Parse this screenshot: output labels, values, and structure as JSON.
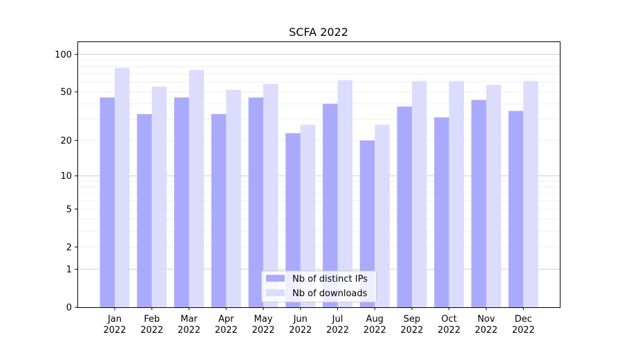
{
  "chart_data": {
    "type": "bar",
    "title": "SCFA 2022",
    "xlabel": "",
    "ylabel": "",
    "yscale": "log(1+y)",
    "ylim": [
      0,
      115
    ],
    "yticks": [
      0,
      1,
      2,
      5,
      10,
      20,
      50,
      100
    ],
    "ytick_labels": [
      "0",
      "1",
      "2",
      "5",
      "10",
      "20",
      "50",
      "100"
    ],
    "categories": [
      [
        "Jan",
        "2022"
      ],
      [
        "Feb",
        "2022"
      ],
      [
        "Mar",
        "2022"
      ],
      [
        "Apr",
        "2022"
      ],
      [
        "May",
        "2022"
      ],
      [
        "Jun",
        "2022"
      ],
      [
        "Jul",
        "2022"
      ],
      [
        "Aug",
        "2022"
      ],
      [
        "Sep",
        "2022"
      ],
      [
        "Oct",
        "2022"
      ],
      [
        "Nov",
        "2022"
      ],
      [
        "Dec",
        "2022"
      ]
    ],
    "series": [
      {
        "name": "Nb of distinct IPs",
        "color": "#aaaafd",
        "values": [
          45,
          33,
          45,
          33,
          45,
          23,
          40,
          20,
          38,
          31,
          43,
          35
        ]
      },
      {
        "name": "Nb of downloads",
        "color": "#dcdcfd",
        "values": [
          78,
          55,
          75,
          52,
          58,
          27,
          62,
          27,
          61,
          61,
          57,
          61
        ]
      }
    ],
    "grid": true,
    "legend_position": "lower center"
  }
}
